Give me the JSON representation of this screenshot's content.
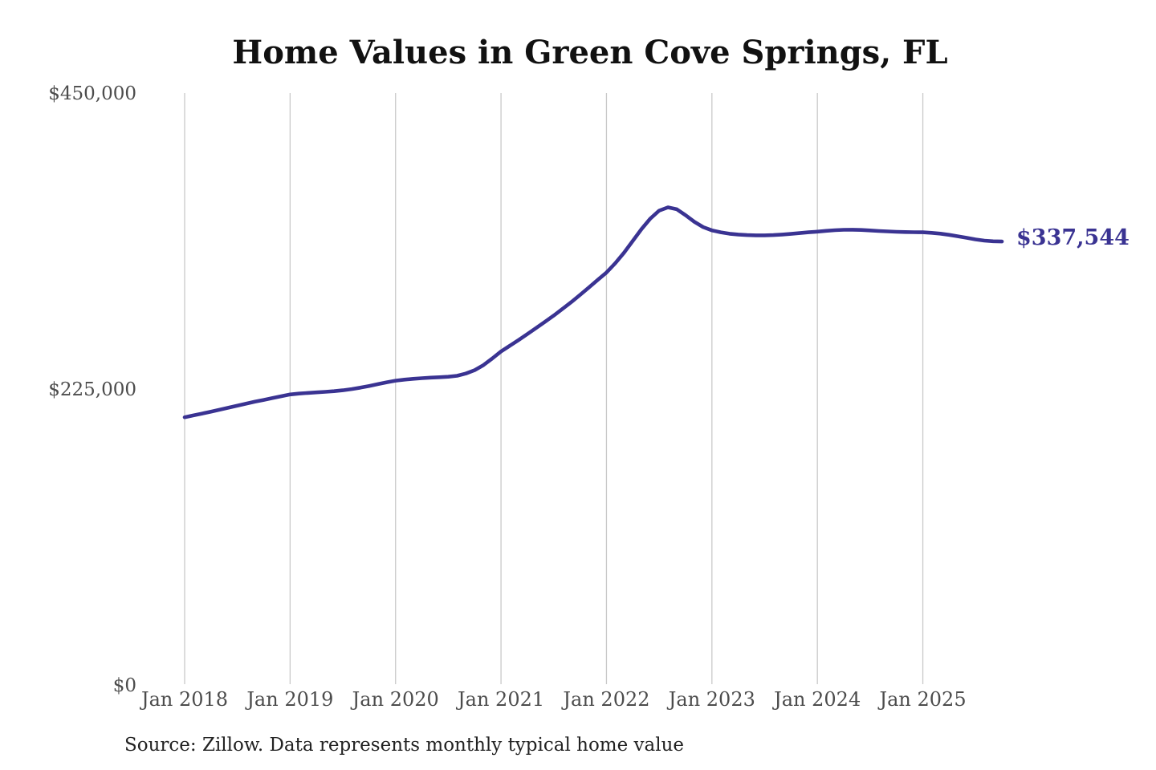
{
  "title": "Home Values in Green Cove Springs, FL",
  "source_note": "Source: Zillow. Data represents monthly typical home value",
  "colors": {
    "line": "#3a3392",
    "gridline": "#c9c9c9",
    "axis_text": "#4c4c4c",
    "title_text": "#111111",
    "source_text": "#222222",
    "background": "#ffffff"
  },
  "chart_data": {
    "type": "line",
    "title": "Home Values in Green Cove Springs, FL",
    "series_name": "Monthly typical home value",
    "xlabel": "",
    "ylabel": "",
    "ylim": [
      0,
      450000
    ],
    "grid": "vertical-only",
    "legend": "none",
    "end_annotation": "$337,544",
    "latest_value": 337544,
    "y_ticks": [
      {
        "value": 450000,
        "label": "$450,000"
      },
      {
        "value": 225000,
        "label": "$225,000"
      },
      {
        "value": 0,
        "label": "$0"
      }
    ],
    "x_ticks": [
      {
        "x": "2018-01",
        "label": "Jan 2018"
      },
      {
        "x": "2019-01",
        "label": "Jan 2019"
      },
      {
        "x": "2020-01",
        "label": "Jan 2020"
      },
      {
        "x": "2021-01",
        "label": "Jan 2021"
      },
      {
        "x": "2022-01",
        "label": "Jan 2022"
      },
      {
        "x": "2023-01",
        "label": "Jan 2023"
      },
      {
        "x": "2024-01",
        "label": "Jan 2024"
      },
      {
        "x": "2025-01",
        "label": "Jan 2025"
      }
    ],
    "x": [
      "2018-01",
      "2018-02",
      "2018-03",
      "2018-04",
      "2018-05",
      "2018-06",
      "2018-07",
      "2018-08",
      "2018-09",
      "2018-10",
      "2018-11",
      "2018-12",
      "2019-01",
      "2019-02",
      "2019-03",
      "2019-04",
      "2019-05",
      "2019-06",
      "2019-07",
      "2019-08",
      "2019-09",
      "2019-10",
      "2019-11",
      "2019-12",
      "2020-01",
      "2020-02",
      "2020-03",
      "2020-04",
      "2020-05",
      "2020-06",
      "2020-07",
      "2020-08",
      "2020-09",
      "2020-10",
      "2020-11",
      "2020-12",
      "2021-01",
      "2021-02",
      "2021-03",
      "2021-04",
      "2021-05",
      "2021-06",
      "2021-07",
      "2021-08",
      "2021-09",
      "2021-10",
      "2021-11",
      "2021-12",
      "2022-01",
      "2022-02",
      "2022-03",
      "2022-04",
      "2022-05",
      "2022-06",
      "2022-07",
      "2022-08",
      "2022-09",
      "2022-10",
      "2022-11",
      "2022-12",
      "2023-01",
      "2023-02",
      "2023-03",
      "2023-04",
      "2023-05",
      "2023-06",
      "2023-07",
      "2023-08",
      "2023-09",
      "2023-10",
      "2023-11",
      "2023-12",
      "2024-01",
      "2024-02",
      "2024-03",
      "2024-04",
      "2024-05",
      "2024-06",
      "2024-07",
      "2024-08",
      "2024-09",
      "2024-10",
      "2024-11",
      "2024-12",
      "2025-01",
      "2025-02",
      "2025-03",
      "2025-04",
      "2025-05",
      "2025-06",
      "2025-07",
      "2025-08",
      "2025-09",
      "2025-10"
    ],
    "values": [
      204000,
      205400,
      206800,
      208300,
      209800,
      211300,
      212800,
      214300,
      215800,
      217200,
      218600,
      220000,
      221300,
      222000,
      222500,
      222900,
      223300,
      223800,
      224500,
      225400,
      226500,
      227800,
      229200,
      230600,
      231800,
      232600,
      233200,
      233700,
      234100,
      234400,
      234800,
      235500,
      237200,
      239800,
      243600,
      248600,
      254000,
      258300,
      262700,
      267200,
      271800,
      276500,
      281300,
      286300,
      291500,
      297000,
      302600,
      308300,
      314000,
      321000,
      329000,
      338000,
      347000,
      355000,
      361000,
      363500,
      362000,
      357500,
      352500,
      348500,
      346000,
      344500,
      343400,
      342800,
      342400,
      342200,
      342200,
      342400,
      342800,
      343300,
      343900,
      344500,
      345000,
      345600,
      346100,
      346400,
      346500,
      346300,
      345900,
      345500,
      345200,
      344900,
      344700,
      344600,
      344500,
      344100,
      343500,
      342600,
      341500,
      340300,
      339100,
      338200,
      337700,
      337544
    ]
  }
}
